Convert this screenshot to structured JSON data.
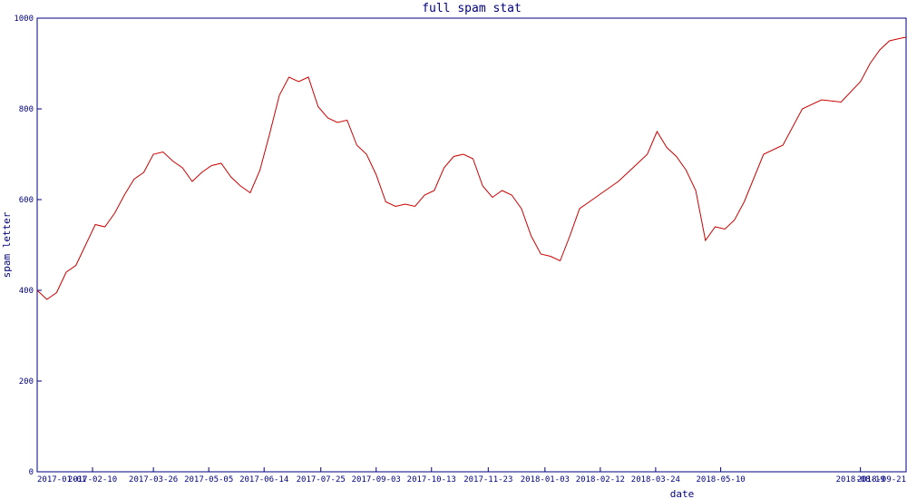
{
  "chart_data": {
    "type": "line",
    "title": "full spam stat",
    "xlabel": "date",
    "ylabel": "spam letter",
    "ylim": [
      0,
      1000
    ],
    "yticks": [
      0,
      200,
      400,
      600,
      800,
      1000
    ],
    "xlim": [
      "2017-01-01",
      "2018-09-21"
    ],
    "xticks": [
      "2017-01-01",
      "2017-02-10",
      "2017-03-26",
      "2017-05-05",
      "2017-06-14",
      "2017-07-25",
      "2017-09-03",
      "2017-10-13",
      "2017-11-23",
      "2018-01-03",
      "2018-02-12",
      "2018-03-24",
      "2018-05-10",
      "2018-08-19",
      "2018-09-21"
    ],
    "grid": false,
    "line_color": "#cc0000",
    "axis_color": "#000080",
    "series": [
      {
        "x": [
          "2017-01-01",
          "2017-01-08",
          "2017-01-15",
          "2017-01-22",
          "2017-01-29",
          "2017-02-05",
          "2017-02-12",
          "2017-02-19",
          "2017-02-26",
          "2017-03-05",
          "2017-03-12",
          "2017-03-19",
          "2017-03-26",
          "2017-04-02",
          "2017-04-09",
          "2017-04-16",
          "2017-04-23",
          "2017-04-30",
          "2017-05-07",
          "2017-05-14",
          "2017-05-21",
          "2017-05-28",
          "2017-06-04",
          "2017-06-11",
          "2017-06-18",
          "2017-06-25",
          "2017-07-02",
          "2017-07-09",
          "2017-07-16",
          "2017-07-23",
          "2017-07-30",
          "2017-08-06",
          "2017-08-13",
          "2017-08-20",
          "2017-08-27",
          "2017-09-03",
          "2017-09-10",
          "2017-09-17",
          "2017-09-24",
          "2017-10-01",
          "2017-10-08",
          "2017-10-15",
          "2017-10-22",
          "2017-10-29",
          "2017-11-05",
          "2017-11-12",
          "2017-11-19",
          "2017-11-26",
          "2017-12-03",
          "2017-12-10",
          "2017-12-17",
          "2017-12-24",
          "2017-12-31",
          "2018-01-07",
          "2018-01-14",
          "2018-01-21",
          "2018-01-28",
          "2018-02-04",
          "2018-02-11",
          "2018-02-18",
          "2018-02-25",
          "2018-03-04",
          "2018-03-11",
          "2018-03-18",
          "2018-03-25",
          "2018-04-01",
          "2018-04-08",
          "2018-04-15",
          "2018-04-22",
          "2018-04-29",
          "2018-05-06",
          "2018-05-13",
          "2018-05-20",
          "2018-05-27",
          "2018-06-10",
          "2018-06-24",
          "2018-07-08",
          "2018-07-22",
          "2018-08-05",
          "2018-08-19",
          "2018-08-26",
          "2018-09-02",
          "2018-09-09",
          "2018-09-16",
          "2018-09-21"
        ],
        "values": [
          400,
          380,
          395,
          440,
          455,
          500,
          545,
          540,
          570,
          610,
          645,
          660,
          700,
          705,
          685,
          670,
          640,
          660,
          675,
          680,
          650,
          630,
          615,
          665,
          745,
          830,
          870,
          860,
          870,
          805,
          780,
          770,
          775,
          720,
          700,
          655,
          595,
          585,
          590,
          585,
          610,
          620,
          670,
          695,
          700,
          690,
          630,
          605,
          620,
          610,
          580,
          520,
          480,
          475,
          465,
          520,
          580,
          595,
          610,
          625,
          640,
          660,
          680,
          700,
          750,
          715,
          695,
          665,
          620,
          510,
          540,
          535,
          555,
          595,
          700,
          720,
          800,
          820,
          815,
          860,
          900,
          930,
          950,
          955,
          958
        ]
      }
    ]
  }
}
